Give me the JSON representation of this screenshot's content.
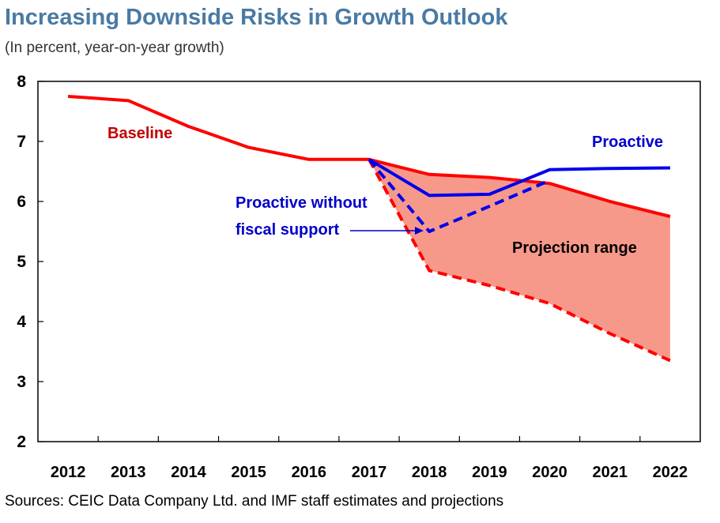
{
  "title": "Increasing Downside Risks in Growth Outlook",
  "subtitle": "(In percent, year-on-year growth)",
  "source": "Sources: CEIC Data Company Ltd. and IMF staff estimates and projections",
  "colors": {
    "baseline": "#ff0000",
    "proactive": "#0000ee",
    "range_fill": "#f7998a",
    "title": "#4a7aa4",
    "baseline_label": "#c00000",
    "proactive_label": "#0000cc"
  },
  "chart_data": {
    "type": "line",
    "title": "Increasing Downside Risks in Growth Outlook",
    "subtitle": "(In percent, year-on-year growth)",
    "categories": [
      "2012",
      "2013",
      "2014",
      "2015",
      "2016",
      "2017",
      "2018",
      "2019",
      "2020",
      "2021",
      "2022"
    ],
    "ylim": [
      2,
      8
    ],
    "yticks": [
      2,
      3,
      4,
      5,
      6,
      7,
      8
    ],
    "grid": false,
    "series": [
      {
        "name": "Baseline",
        "style": "solid",
        "color": "#ff0000",
        "values": [
          7.75,
          7.68,
          7.25,
          6.9,
          6.7,
          6.7,
          6.45,
          6.4,
          6.3,
          6.0,
          5.75
        ]
      },
      {
        "name": "Proactive",
        "style": "solid",
        "color": "#0000ee",
        "values": [
          null,
          null,
          null,
          null,
          null,
          6.7,
          6.1,
          6.12,
          6.53,
          6.55,
          6.56
        ]
      },
      {
        "name": "Proactive without fiscal support",
        "style": "dashed",
        "color": "#0000ee",
        "values": [
          null,
          null,
          null,
          null,
          null,
          6.7,
          5.5,
          5.92,
          6.35,
          null,
          null
        ]
      },
      {
        "name": "",
        "style": "dashed",
        "color": "#ff0000",
        "values": [
          null,
          null,
          null,
          null,
          null,
          6.7,
          4.85,
          4.6,
          4.3,
          3.8,
          3.35
        ]
      }
    ],
    "projection_range": {
      "label": "Projection range",
      "upper": [
        6.7,
        6.45,
        6.4,
        6.3,
        6.0,
        5.75
      ],
      "lower": [
        6.7,
        4.85,
        4.6,
        4.3,
        3.8,
        3.35
      ],
      "categories": [
        "2017",
        "2018",
        "2019",
        "2020",
        "2021",
        "2022"
      ]
    },
    "annotations": {
      "baseline": "Baseline",
      "proactive": "Proactive",
      "proactive_no_fiscal_line1": "Proactive without",
      "proactive_no_fiscal_line2": "fiscal support",
      "projection_range": "Projection range"
    }
  }
}
